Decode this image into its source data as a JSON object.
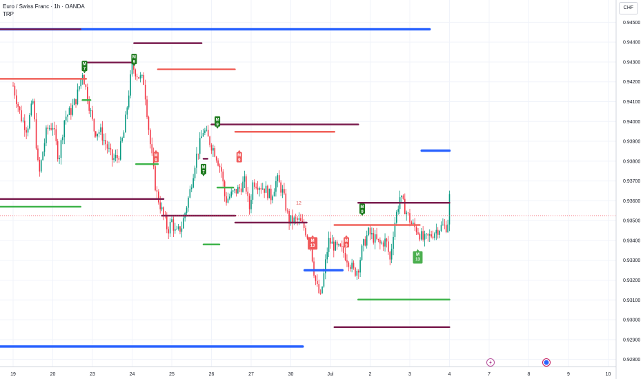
{
  "header": {
    "title": "Euro / Swiss Franc · 1h · OANDA",
    "indicator": "TRP",
    "currency": "CHF"
  },
  "colors": {
    "up": "#089981",
    "down": "#f23645",
    "blue_level": "#2962ff",
    "purple_level": "#7b1e4f",
    "red_level": "#f0625a",
    "green_level": "#3db34a",
    "marker_green": "#1e7a1e",
    "marker_red": "#f05a5a",
    "marker_green_light": "#4caf50"
  },
  "chart_data": {
    "type": "candlestick",
    "symbol": "Euro / Swiss Franc",
    "interval": "1h",
    "source": "OANDA",
    "ylim": [
      0.9275,
      0.9455
    ],
    "y_ticks": [
      "0.94500",
      "0.94400",
      "0.94300",
      "0.94200",
      "0.94100",
      "0.94000",
      "0.93900",
      "0.93800",
      "0.93700",
      "0.93600",
      "0.93500",
      "0.93400",
      "0.93300",
      "0.93200",
      "0.93100",
      "0.93000",
      "0.92900",
      "0.92800"
    ],
    "x_ticks": [
      "19",
      "20",
      "23",
      "24",
      "25",
      "26",
      "27",
      "30",
      "Jul",
      "2",
      "3",
      "4",
      "7",
      "8",
      "9",
      "10"
    ],
    "last_price": 0.93525,
    "price_path": [
      [
        0.0,
        0.9418
      ],
      [
        0.2,
        0.9402
      ],
      [
        0.35,
        0.9396
      ],
      [
        0.5,
        0.941
      ],
      [
        0.65,
        0.9372
      ],
      [
        0.75,
        0.9385
      ],
      [
        0.85,
        0.9396
      ],
      [
        1.0,
        0.9398
      ],
      [
        1.15,
        0.9381
      ],
      [
        1.3,
        0.9402
      ],
      [
        1.45,
        0.9405
      ],
      [
        1.6,
        0.9412
      ],
      [
        1.75,
        0.9425
      ],
      [
        1.9,
        0.941
      ],
      [
        2.05,
        0.9395
      ],
      [
        2.2,
        0.9395
      ],
      [
        2.35,
        0.9388
      ],
      [
        2.5,
        0.9381
      ],
      [
        2.65,
        0.9382
      ],
      [
        2.8,
        0.9395
      ],
      [
        2.9,
        0.9412
      ],
      [
        3.0,
        0.9428
      ],
      [
        3.15,
        0.9423
      ],
      [
        3.3,
        0.942
      ],
      [
        3.45,
        0.939
      ],
      [
        3.6,
        0.9365
      ],
      [
        3.75,
        0.9355
      ],
      [
        3.9,
        0.9345
      ],
      [
        4.0,
        0.935
      ],
      [
        4.1,
        0.9343
      ],
      [
        4.25,
        0.9347
      ],
      [
        4.45,
        0.9364
      ],
      [
        4.6,
        0.9381
      ],
      [
        4.7,
        0.9388
      ],
      [
        4.8,
        0.9396
      ],
      [
        4.95,
        0.939
      ],
      [
        5.1,
        0.9384
      ],
      [
        5.25,
        0.9375
      ],
      [
        5.35,
        0.936
      ],
      [
        5.45,
        0.9362
      ],
      [
        5.55,
        0.9364
      ],
      [
        5.7,
        0.9366
      ],
      [
        5.85,
        0.937
      ],
      [
        5.95,
        0.9355
      ],
      [
        6.05,
        0.937
      ],
      [
        6.2,
        0.9368
      ],
      [
        6.35,
        0.9366
      ],
      [
        6.5,
        0.9362
      ],
      [
        6.65,
        0.9371
      ],
      [
        6.8,
        0.9364
      ],
      [
        6.95,
        0.935
      ],
      [
        7.05,
        0.935
      ],
      [
        7.2,
        0.935
      ],
      [
        7.35,
        0.9346
      ],
      [
        7.5,
        0.9338
      ],
      [
        7.6,
        0.9322
      ],
      [
        7.65,
        0.9317
      ],
      [
        7.75,
        0.9311
      ],
      [
        7.85,
        0.9325
      ],
      [
        7.95,
        0.934
      ],
      [
        8.05,
        0.9338
      ],
      [
        8.15,
        0.9336
      ],
      [
        8.3,
        0.9335
      ],
      [
        8.45,
        0.933
      ],
      [
        8.6,
        0.9324
      ],
      [
        8.7,
        0.9326
      ],
      [
        8.8,
        0.9336
      ],
      [
        8.95,
        0.9344
      ],
      [
        9.1,
        0.9341
      ],
      [
        9.25,
        0.9338
      ],
      [
        9.4,
        0.934
      ],
      [
        9.5,
        0.933
      ],
      [
        9.6,
        0.9347
      ],
      [
        9.75,
        0.9362
      ],
      [
        9.9,
        0.9355
      ],
      [
        10.05,
        0.9348
      ],
      [
        10.2,
        0.9345
      ],
      [
        10.35,
        0.934
      ],
      [
        10.5,
        0.9342
      ],
      [
        10.65,
        0.9345
      ],
      [
        10.8,
        0.9347
      ],
      [
        10.95,
        0.9347
      ],
      [
        11.0,
        0.9362
      ]
    ],
    "levels": [
      {
        "kind": "blue",
        "price": 0.94465,
        "x_from": -0.4,
        "x_to": 10.5
      },
      {
        "kind": "purple",
        "price": 0.94465,
        "x_from": -0.4,
        "x_to": 1.7
      },
      {
        "kind": "purple",
        "price": 0.94395,
        "x_from": 3.05,
        "x_to": 4.75
      },
      {
        "kind": "purple",
        "price": 0.94297,
        "x_from": 1.8,
        "x_to": 3.05
      },
      {
        "kind": "red",
        "price": 0.94263,
        "x_from": 3.65,
        "x_to": 5.6
      },
      {
        "kind": "red",
        "price": 0.94215,
        "x_from": -0.4,
        "x_to": 1.85
      },
      {
        "kind": "green",
        "price": 0.94108,
        "x_from": 1.75,
        "x_to": 1.95
      },
      {
        "kind": "purple",
        "price": 0.93985,
        "x_from": 5.0,
        "x_to": 8.7
      },
      {
        "kind": "red",
        "price": 0.93948,
        "x_from": 5.6,
        "x_to": 8.1
      },
      {
        "kind": "blue",
        "price": 0.93853,
        "x_from": 10.3,
        "x_to": 11.0
      },
      {
        "kind": "purple",
        "price": 0.93812,
        "x_from": 4.8,
        "x_to": 4.9
      },
      {
        "kind": "green",
        "price": 0.93785,
        "x_from": 3.1,
        "x_to": 3.65
      },
      {
        "kind": "green",
        "price": 0.93667,
        "x_from": 5.15,
        "x_to": 5.55
      },
      {
        "kind": "purple",
        "price": 0.93609,
        "x_from": -0.4,
        "x_to": 3.8
      },
      {
        "kind": "purple",
        "price": 0.9359,
        "x_from": 8.7,
        "x_to": 11.0
      },
      {
        "kind": "green",
        "price": 0.9357,
        "x_from": -0.4,
        "x_to": 1.7
      },
      {
        "kind": "purple",
        "price": 0.93525,
        "x_from": 3.75,
        "x_to": 5.6
      },
      {
        "kind": "purple",
        "price": 0.9349,
        "x_from": 5.6,
        "x_to": 7.4
      },
      {
        "kind": "red",
        "price": 0.93478,
        "x_from": 8.1,
        "x_to": 10.25
      },
      {
        "kind": "green",
        "price": 0.9338,
        "x_from": 4.8,
        "x_to": 5.2
      },
      {
        "kind": "blue",
        "price": 0.9325,
        "x_from": 7.35,
        "x_to": 8.3
      },
      {
        "kind": "green",
        "price": 0.93102,
        "x_from": 8.7,
        "x_to": 11.0
      },
      {
        "kind": "purple",
        "price": 0.92963,
        "x_from": 8.1,
        "x_to": 11.0
      },
      {
        "kind": "blue",
        "price": 0.92865,
        "x_from": -0.4,
        "x_to": 7.3
      }
    ],
    "markers": [
      {
        "label": "M\n7",
        "x": 1.8,
        "price": 0.9424,
        "color": "green",
        "pos": "above"
      },
      {
        "label": "M\n9",
        "x": 3.05,
        "price": 0.94275,
        "color": "green",
        "pos": "above"
      },
      {
        "label": "M\n9",
        "x": 3.6,
        "price": 0.9386,
        "color": "red",
        "pos": "below"
      },
      {
        "label": "M\n9",
        "x": 5.15,
        "price": 0.9396,
        "color": "green",
        "pos": "above"
      },
      {
        "label": "M\n9",
        "x": 5.7,
        "price": 0.9386,
        "color": "red",
        "pos": "below"
      },
      {
        "label": "M\n7",
        "x": 4.8,
        "price": 0.9372,
        "color": "green",
        "pos": "above"
      },
      {
        "label": "M\n13",
        "x": 7.55,
        "price": 0.9343,
        "color": "red",
        "pos": "below"
      },
      {
        "label": "M\n9",
        "x": 8.4,
        "price": 0.9343,
        "color": "red",
        "pos": "below"
      },
      {
        "label": "M\n9",
        "x": 8.8,
        "price": 0.9352,
        "color": "green",
        "pos": "above"
      },
      {
        "label": "M\n13",
        "x": 10.2,
        "price": 0.9336,
        "color": "green_light",
        "pos": "below"
      }
    ],
    "count_labels": [
      {
        "text": "12",
        "x": 7.2,
        "price": 0.9358
      }
    ]
  }
}
